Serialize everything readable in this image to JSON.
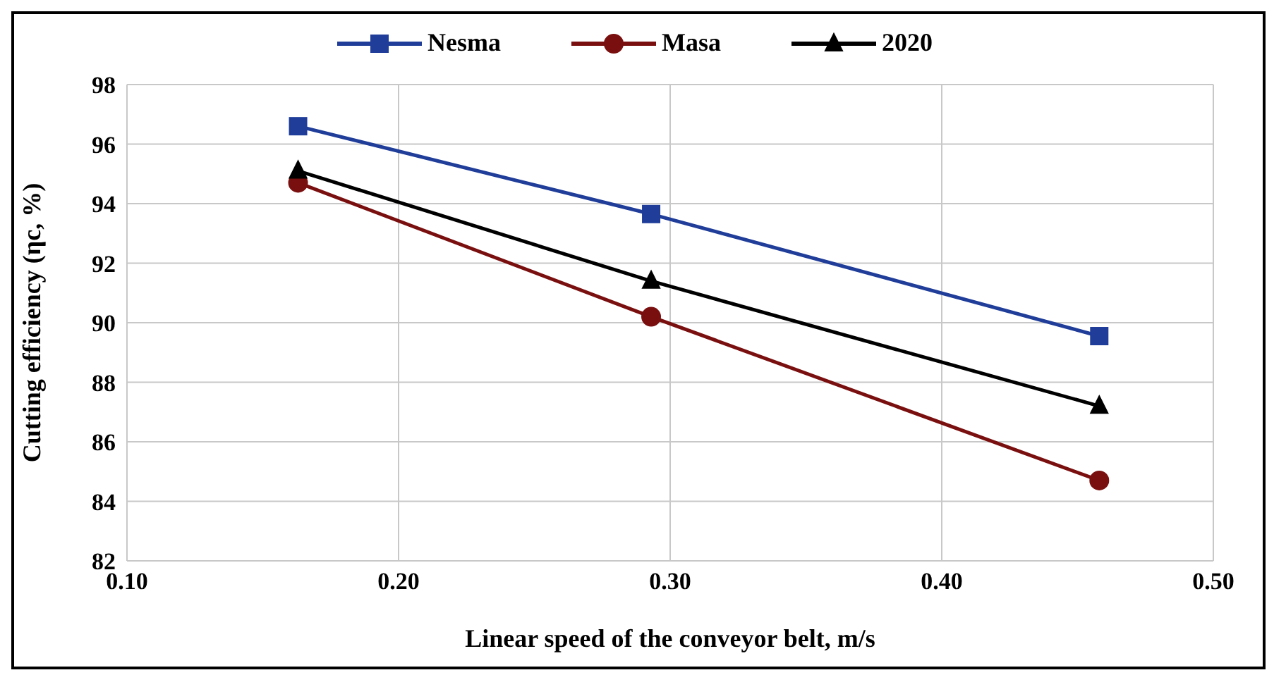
{
  "chart_data": {
    "type": "line",
    "xlabel": "Linear speed of the conveyor belt, m/s",
    "ylabel": "Cutting efficiency (ηc, %)",
    "x": [
      0.163,
      0.293,
      0.458
    ],
    "series": [
      {
        "name": "Nesma",
        "color": "#1f3d99",
        "marker": "square",
        "values": [
          96.6,
          93.65,
          89.55
        ]
      },
      {
        "name": "Masa",
        "color": "#7a0f0f",
        "marker": "circle",
        "values": [
          94.7,
          90.2,
          84.7
        ]
      },
      {
        "name": "2020",
        "color": "#000000",
        "marker": "triangle",
        "values": [
          95.1,
          91.4,
          87.2
        ]
      }
    ],
    "xlim": [
      0.1,
      0.5
    ],
    "xticks": [
      {
        "value": 0.1,
        "label": "0.10"
      },
      {
        "value": 0.2,
        "label": "0.20"
      },
      {
        "value": 0.3,
        "label": "0.30"
      },
      {
        "value": 0.4,
        "label": "0.40"
      },
      {
        "value": 0.5,
        "label": "0.50"
      }
    ],
    "ylim": [
      82,
      98
    ],
    "yticks": [
      82,
      84,
      86,
      88,
      90,
      92,
      94,
      96,
      98
    ],
    "grid": true,
    "legend": "top"
  }
}
